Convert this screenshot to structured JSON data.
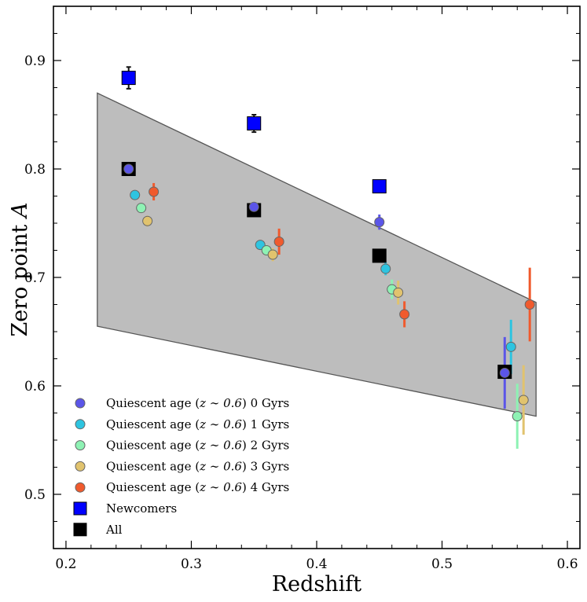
{
  "chart_data": {
    "type": "scatter",
    "title": "",
    "xlabel": "Redshift",
    "ylabel_text": "Zero point",
    "ylabel_symbol": "A",
    "xlim": [
      0.19,
      0.61
    ],
    "ylim": [
      0.45,
      0.95
    ],
    "xticks": [
      0.2,
      0.3,
      0.4,
      0.5,
      0.6
    ],
    "xtick_labels": [
      "0.2",
      "0.3",
      "0.4",
      "0.5",
      "0.6"
    ],
    "yticks": [
      0.5,
      0.6,
      0.7,
      0.8,
      0.9
    ],
    "ytick_labels": [
      "0.5",
      "0.6",
      "0.7",
      "0.8",
      "0.9"
    ],
    "band": {
      "fill": "#bdbdbd",
      "stroke": "#555555",
      "polygon": [
        [
          0.225,
          0.87
        ],
        [
          0.575,
          0.677
        ],
        [
          0.575,
          0.572
        ],
        [
          0.225,
          0.655
        ]
      ]
    },
    "legend_position": "lower-left",
    "series": [
      {
        "name": "Quiescent age (z ~ 0.6) 0 Gyrs",
        "label_prefix": "Quiescent age (",
        "label_math": "z ∼ 0.6",
        "label_suffix": ") 0 Gyrs",
        "marker": "circle",
        "color": "#5b55e8",
        "points": [
          {
            "x": 0.25,
            "y": 0.8,
            "err": 0.003
          },
          {
            "x": 0.35,
            "y": 0.765,
            "err": 0.004
          },
          {
            "x": 0.45,
            "y": 0.751,
            "err": 0.007
          },
          {
            "x": 0.55,
            "y": 0.612,
            "err": 0.033
          }
        ]
      },
      {
        "name": "Quiescent age (z ~ 0.6) 1 Gyrs",
        "label_prefix": "Quiescent age (",
        "label_math": "z ∼ 0.6",
        "label_suffix": ") 1 Gyrs",
        "marker": "circle",
        "color": "#2ec4e0",
        "points": [
          {
            "x": 0.255,
            "y": 0.776,
            "err": 0.003
          },
          {
            "x": 0.355,
            "y": 0.73,
            "err": 0.004
          },
          {
            "x": 0.455,
            "y": 0.708,
            "err": 0.006
          },
          {
            "x": 0.555,
            "y": 0.636,
            "err": 0.025
          }
        ]
      },
      {
        "name": "Quiescent age (z ~ 0.6) 2 Gyrs",
        "label_prefix": "Quiescent age (",
        "label_math": "z ∼ 0.6",
        "label_suffix": ") 2 Gyrs",
        "marker": "circle",
        "color": "#8ef2b4",
        "points": [
          {
            "x": 0.26,
            "y": 0.764,
            "err": 0.004
          },
          {
            "x": 0.36,
            "y": 0.725,
            "err": 0.005
          },
          {
            "x": 0.46,
            "y": 0.689,
            "err": 0.009
          },
          {
            "x": 0.56,
            "y": 0.572,
            "err": 0.03
          }
        ]
      },
      {
        "name": "Quiescent age (z ~ 0.6) 3 Gyrs",
        "label_prefix": "Quiescent age (",
        "label_math": "z ∼ 0.6",
        "label_suffix": ") 3 Gyrs",
        "marker": "circle",
        "color": "#e1c36e",
        "points": [
          {
            "x": 0.265,
            "y": 0.752,
            "err": 0.005
          },
          {
            "x": 0.365,
            "y": 0.721,
            "err": 0.006
          },
          {
            "x": 0.465,
            "y": 0.686,
            "err": 0.011
          },
          {
            "x": 0.565,
            "y": 0.587,
            "err": 0.032
          }
        ]
      },
      {
        "name": "Quiescent age (z ~ 0.6) 4 Gyrs",
        "label_prefix": "Quiescent age (",
        "label_math": "z ∼ 0.6",
        "label_suffix": ") 4 Gyrs",
        "marker": "circle",
        "color": "#f05a2d",
        "points": [
          {
            "x": 0.27,
            "y": 0.779,
            "err": 0.008
          },
          {
            "x": 0.37,
            "y": 0.733,
            "err": 0.012
          },
          {
            "x": 0.47,
            "y": 0.666,
            "err": 0.012
          },
          {
            "x": 0.57,
            "y": 0.675,
            "err": 0.034
          }
        ]
      },
      {
        "name": "Newcomers",
        "marker": "square",
        "color": "#0000ff",
        "points": [
          {
            "x": 0.25,
            "y": 0.884,
            "err": 0.01
          },
          {
            "x": 0.35,
            "y": 0.842,
            "err": 0.008
          },
          {
            "x": 0.45,
            "y": 0.784,
            "err": 0.005
          }
        ]
      },
      {
        "name": "All",
        "marker": "square",
        "color": "#000000",
        "points": [
          {
            "x": 0.25,
            "y": 0.8,
            "err": 0.0
          },
          {
            "x": 0.35,
            "y": 0.762,
            "err": 0.0
          },
          {
            "x": 0.45,
            "y": 0.72,
            "err": 0.0
          },
          {
            "x": 0.55,
            "y": 0.613,
            "err": 0.0
          }
        ]
      }
    ]
  }
}
